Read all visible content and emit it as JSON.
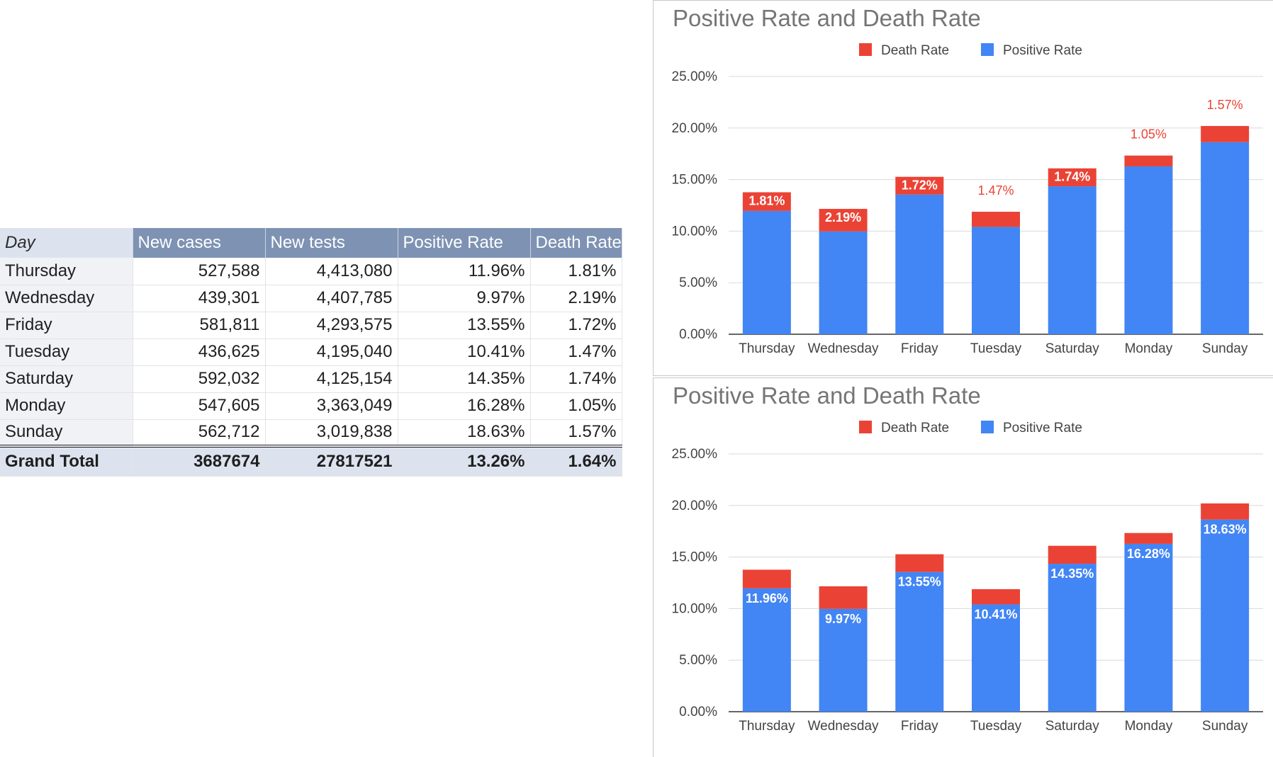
{
  "table": {
    "headers": [
      "Day",
      "New cases",
      "New tests",
      "Positive Rate",
      "Death Rate"
    ],
    "rows": [
      [
        "Thursday",
        "527,588",
        "4,413,080",
        "11.96%",
        "1.81%"
      ],
      [
        "Wednesday",
        "439,301",
        "4,407,785",
        "9.97%",
        "2.19%"
      ],
      [
        "Friday",
        "581,811",
        "4,293,575",
        "13.55%",
        "1.72%"
      ],
      [
        "Tuesday",
        "436,625",
        "4,195,040",
        "10.41%",
        "1.47%"
      ],
      [
        "Saturday",
        "592,032",
        "4,125,154",
        "14.35%",
        "1.74%"
      ],
      [
        "Monday",
        "547,605",
        "3,363,049",
        "16.28%",
        "1.05%"
      ],
      [
        "Sunday",
        "562,712",
        "3,019,838",
        "18.63%",
        "1.57%"
      ]
    ],
    "total": [
      "Grand Total",
      "3687674",
      "27817521",
      "13.26%",
      "1.64%"
    ]
  },
  "colors": {
    "positive": "#4285f4",
    "death": "#ea4335",
    "grid": "#d9d9d9",
    "axis": "#333333"
  },
  "chart_data": [
    {
      "type": "bar",
      "stacked": true,
      "title": "Positive Rate and Death Rate",
      "categories": [
        "Thursday",
        "Wednesday",
        "Friday",
        "Tuesday",
        "Saturday",
        "Monday",
        "Sunday"
      ],
      "series": [
        {
          "name": "Positive Rate",
          "values": [
            11.96,
            9.97,
            13.55,
            10.41,
            14.35,
            16.28,
            18.63
          ],
          "color": "#4285f4"
        },
        {
          "name": "Death Rate",
          "values": [
            1.81,
            2.19,
            1.72,
            1.47,
            1.74,
            1.05,
            1.57
          ],
          "color": "#ea4335"
        }
      ],
      "legend": [
        "Death Rate",
        "Positive Rate"
      ],
      "legend_position": "top",
      "ylim": [
        0,
        25
      ],
      "yticks": [
        "0.00%",
        "5.00%",
        "10.00%",
        "15.00%",
        "20.00%",
        "25.00%"
      ],
      "grid": true,
      "data_labels": {
        "series": "Death Rate",
        "texts": [
          "1.81%",
          "2.19%",
          "1.72%",
          "1.47%",
          "1.74%",
          "1.05%",
          "1.57%"
        ],
        "placement": [
          "inside",
          "inside",
          "inside",
          "outside",
          "inside",
          "outside",
          "outside"
        ]
      }
    },
    {
      "type": "bar",
      "stacked": true,
      "title": "Positive Rate and Death Rate",
      "categories": [
        "Thursday",
        "Wednesday",
        "Friday",
        "Tuesday",
        "Saturday",
        "Monday",
        "Sunday"
      ],
      "series": [
        {
          "name": "Positive Rate",
          "values": [
            11.96,
            9.97,
            13.55,
            10.41,
            14.35,
            16.28,
            18.63
          ],
          "color": "#4285f4"
        },
        {
          "name": "Death Rate",
          "values": [
            1.81,
            2.19,
            1.72,
            1.47,
            1.74,
            1.05,
            1.57
          ],
          "color": "#ea4335"
        }
      ],
      "legend": [
        "Death Rate",
        "Positive Rate"
      ],
      "legend_position": "top",
      "ylim": [
        0,
        25
      ],
      "yticks": [
        "0.00%",
        "5.00%",
        "10.00%",
        "15.00%",
        "20.00%",
        "25.00%"
      ],
      "grid": true,
      "data_labels": {
        "series": "Positive Rate",
        "texts": [
          "11.96%",
          "9.97%",
          "13.55%",
          "10.41%",
          "14.35%",
          "16.28%",
          "18.63%"
        ],
        "placement": [
          "inside",
          "inside",
          "inside",
          "inside",
          "inside",
          "inside",
          "inside"
        ]
      }
    }
  ]
}
